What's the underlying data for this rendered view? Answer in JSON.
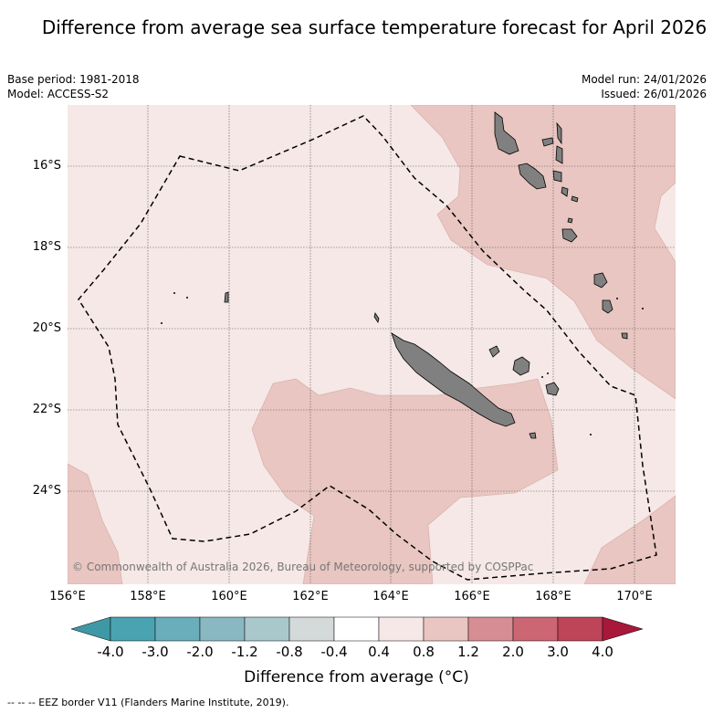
{
  "title": "Difference from average sea surface temperature forecast for April 2026",
  "meta": {
    "base_period": "Base period: 1981-2018",
    "model": "Model: ACCESS-S2",
    "model_run": "Model run: 24/01/2026",
    "issued": "Issued: 26/01/2026"
  },
  "copyright": "© Commonwealth of Australia 2026, Bureau of Meteorology, supported by COSPPac",
  "axes": {
    "lat_labels": [
      "16°S",
      "18°S",
      "20°S",
      "22°S",
      "24°S"
    ],
    "lon_labels": [
      "156°E",
      "158°E",
      "160°E",
      "162°E",
      "164°E",
      "166°E",
      "168°E",
      "170°E"
    ]
  },
  "colorbar": {
    "ticks": [
      "-4.0",
      "-3.0",
      "-2.0",
      "-1.2",
      "-0.8",
      "-0.4",
      "0.4",
      "0.8",
      "1.2",
      "2.0",
      "3.0",
      "4.0"
    ],
    "colors": [
      "#3f98a6",
      "#4aa3b1",
      "#6aaebb",
      "#8ab8c2",
      "#a9c8cc",
      "#d4d9da",
      "#ffffff",
      "#f5e8e6",
      "#e9c6c1",
      "#d78d94",
      "#cb6672",
      "#be4458",
      "#a8183a"
    ],
    "title": "Difference from average (°C)"
  },
  "map_colors": {
    "band_0_4_to_0_8": "#f5e8e6",
    "band_0_8_to_1_2": "#e9c6c1",
    "land": "#808080"
  },
  "footer": "-- -- -- EEZ border V11 (Flanders Marine Institute, 2019)."
}
